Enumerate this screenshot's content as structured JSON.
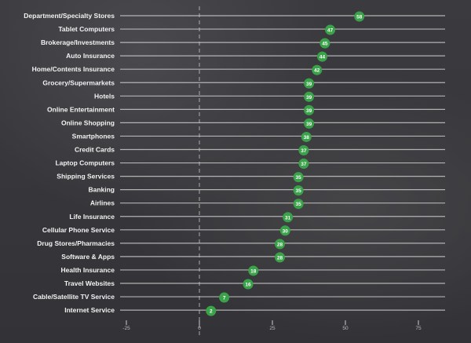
{
  "chart_data": {
    "type": "scatter",
    "orientation": "horizontal-dot",
    "categories": [
      "Department/Specialty Stores",
      "Tablet Computers",
      "Brokerage/Investments",
      "Auto Insurance",
      "Home/Contents Insurance",
      "Grocery/Supermarkets",
      "Hotels",
      "Online Entertainment",
      "Online Shopping",
      "Smartphones",
      "Credit Cards",
      "Laptop Computers",
      "Shipping Services",
      "Banking",
      "Airlines",
      "Life Insurance",
      "Cellular Phone Service",
      "Drug Stores/Pharmacies",
      "Software & Apps",
      "Health Insurance",
      "Travel Websites",
      "Cable/Satellite TV Service",
      "Internet Service"
    ],
    "values": [
      58,
      47,
      45,
      44,
      42,
      39,
      39,
      39,
      39,
      38,
      37,
      37,
      35,
      35,
      35,
      31,
      30,
      28,
      28,
      18,
      16,
      7,
      2
    ],
    "xticks": [
      -25,
      0,
      25,
      50,
      75
    ],
    "xlim": [
      -25,
      75
    ],
    "zero_line": "dashed",
    "grid": true,
    "colors": {
      "point": "#3aa34a",
      "background": "#38383c",
      "line": "#c8c8c8"
    }
  }
}
